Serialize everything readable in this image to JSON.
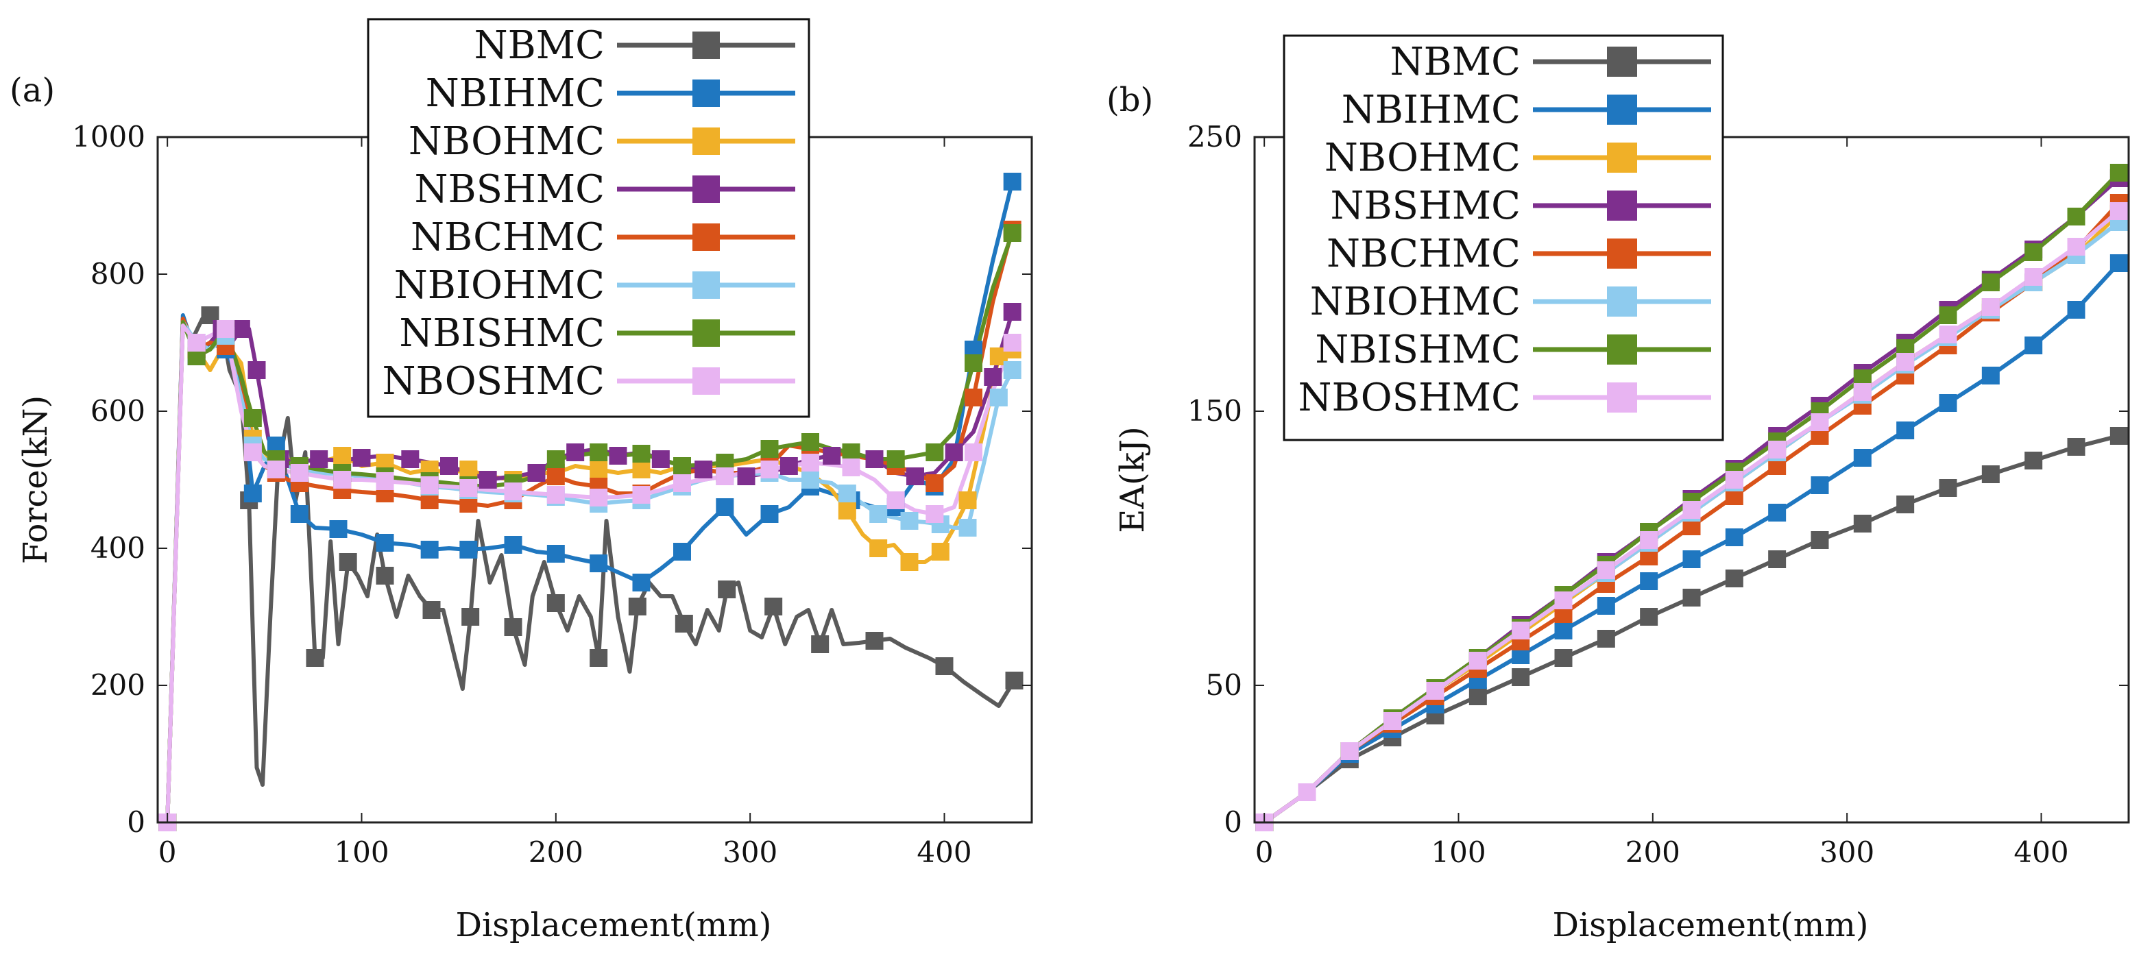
{
  "colors": {
    "NBMC": "#5a5a5a",
    "NBIHMC": "#1f77c0",
    "NBOHMC": "#f0b028",
    "NBSHMC": "#7e2f8e",
    "NBCHMC": "#d95319",
    "NBIOHMC": "#8ecbee",
    "NBISHMC": "#5f8f23",
    "NBOSHMC": "#e8b4f2"
  },
  "chart_data": [
    {
      "type": "line",
      "panel_label": "(a)",
      "xlabel": "Displacement(mm)",
      "ylabel": "Force(kN)",
      "xlim": [
        -5,
        445
      ],
      "ylim": [
        0,
        1000
      ],
      "xticks": [
        "0",
        "100",
        "200",
        "300",
        "400"
      ],
      "yticks": [
        "0",
        "200",
        "400",
        "600",
        "800",
        "1000"
      ],
      "legend_position": "top-center",
      "series": [
        {
          "name": "NBMC",
          "x": [
            0,
            8,
            12,
            18,
            22,
            28,
            32,
            38,
            42,
            46,
            49,
            53,
            57,
            62,
            66,
            71,
            76,
            80,
            84,
            88,
            93,
            98,
            103,
            108,
            112,
            118,
            124,
            130,
            136,
            142,
            148,
            152,
            156,
            160,
            166,
            172,
            178,
            184,
            188,
            194,
            200,
            206,
            212,
            218,
            222,
            226,
            232,
            238,
            242,
            248,
            254,
            260,
            266,
            272,
            278,
            284,
            288,
            294,
            300,
            306,
            312,
            318,
            324,
            330,
            336,
            342,
            348,
            356,
            364,
            372,
            380,
            392,
            400,
            410,
            420,
            428,
            436
          ],
          "y": [
            0,
            735,
            700,
            735,
            740,
            725,
            660,
            620,
            470,
            80,
            55,
            300,
            520,
            590,
            470,
            540,
            240,
            240,
            410,
            260,
            380,
            360,
            330,
            420,
            360,
            300,
            360,
            330,
            310,
            310,
            240,
            195,
            300,
            440,
            350,
            390,
            285,
            230,
            330,
            380,
            320,
            280,
            330,
            300,
            240,
            440,
            300,
            220,
            315,
            350,
            330,
            330,
            290,
            260,
            310,
            280,
            340,
            350,
            280,
            270,
            315,
            260,
            300,
            310,
            260,
            310,
            260,
            262,
            265,
            268,
            255,
            240,
            228,
            205,
            185,
            170,
            207
          ]
        },
        {
          "name": "NBIHMC",
          "x": [
            0,
            8,
            15,
            22,
            30,
            38,
            44,
            50,
            56,
            62,
            68,
            76,
            88,
            100,
            112,
            125,
            135,
            145,
            155,
            165,
            178,
            190,
            200,
            210,
            222,
            232,
            244,
            254,
            265,
            276,
            287,
            298,
            310,
            320,
            331,
            342,
            352,
            364,
            375,
            385,
            395,
            405,
            415,
            425,
            435
          ],
          "y": [
            0,
            740,
            680,
            700,
            690,
            640,
            480,
            520,
            550,
            500,
            450,
            430,
            428,
            420,
            408,
            405,
            398,
            400,
            398,
            400,
            405,
            395,
            392,
            385,
            378,
            365,
            350,
            370,
            395,
            430,
            460,
            420,
            450,
            460,
            490,
            480,
            470,
            460,
            460,
            500,
            490,
            530,
            690,
            820,
            935
          ]
        },
        {
          "name": "NBOHMC",
          "x": [
            0,
            8,
            15,
            22,
            30,
            38,
            44,
            50,
            56,
            62,
            68,
            78,
            90,
            100,
            112,
            125,
            135,
            145,
            155,
            165,
            178,
            190,
            200,
            210,
            222,
            232,
            244,
            254,
            265,
            276,
            287,
            298,
            310,
            320,
            331,
            342,
            350,
            358,
            366,
            374,
            382,
            390,
            398,
            405,
            412,
            420,
            428,
            435
          ],
          "y": [
            0,
            730,
            690,
            660,
            700,
            670,
            560,
            540,
            520,
            530,
            510,
            525,
            535,
            520,
            525,
            510,
            515,
            510,
            515,
            505,
            500,
            510,
            510,
            520,
            515,
            510,
            515,
            510,
            520,
            520,
            520,
            525,
            530,
            520,
            510,
            485,
            455,
            420,
            400,
            405,
            380,
            380,
            395,
            430,
            470,
            570,
            680,
            690
          ]
        },
        {
          "name": "NBSHMC",
          "x": [
            0,
            8,
            15,
            22,
            28,
            33,
            38,
            42,
            46,
            52,
            58,
            66,
            78,
            90,
            100,
            112,
            125,
            135,
            145,
            155,
            165,
            178,
            190,
            200,
            210,
            222,
            232,
            244,
            254,
            265,
            276,
            287,
            298,
            310,
            320,
            331,
            342,
            352,
            364,
            375,
            385,
            395,
            405,
            415,
            425,
            435
          ],
          "y": [
            0,
            730,
            690,
            700,
            720,
            700,
            720,
            720,
            660,
            560,
            530,
            525,
            530,
            528,
            532,
            535,
            530,
            525,
            520,
            510,
            500,
            505,
            510,
            530,
            540,
            545,
            535,
            540,
            530,
            520,
            515,
            510,
            505,
            510,
            520,
            530,
            535,
            540,
            530,
            510,
            505,
            510,
            540,
            570,
            650,
            745
          ]
        },
        {
          "name": "NBCHMC",
          "x": [
            0,
            8,
            15,
            22,
            30,
            38,
            44,
            50,
            56,
            62,
            68,
            78,
            90,
            100,
            112,
            125,
            135,
            145,
            155,
            165,
            178,
            190,
            200,
            210,
            222,
            232,
            244,
            254,
            265,
            276,
            287,
            298,
            310,
            320,
            331,
            342,
            352,
            364,
            375,
            385,
            395,
            405,
            415,
            425,
            435
          ],
          "y": [
            0,
            735,
            690,
            700,
            695,
            650,
            540,
            520,
            510,
            500,
            495,
            490,
            485,
            482,
            480,
            475,
            470,
            468,
            465,
            462,
            470,
            490,
            505,
            495,
            490,
            480,
            480,
            495,
            510,
            515,
            510,
            510,
            520,
            550,
            545,
            540,
            535,
            530,
            520,
            510,
            495,
            520,
            620,
            760,
            865
          ]
        },
        {
          "name": "NBIOHMC",
          "x": [
            0,
            8,
            15,
            22,
            30,
            38,
            44,
            50,
            56,
            62,
            68,
            78,
            90,
            100,
            112,
            125,
            135,
            145,
            155,
            165,
            178,
            190,
            200,
            210,
            222,
            232,
            244,
            254,
            265,
            276,
            287,
            298,
            310,
            320,
            331,
            342,
            350,
            358,
            366,
            374,
            382,
            390,
            398,
            405,
            412,
            420,
            428,
            435
          ],
          "y": [
            0,
            730,
            700,
            690,
            710,
            620,
            550,
            530,
            525,
            520,
            515,
            510,
            508,
            505,
            500,
            495,
            490,
            488,
            485,
            482,
            480,
            478,
            475,
            470,
            465,
            468,
            470,
            480,
            490,
            500,
            505,
            508,
            510,
            500,
            500,
            495,
            480,
            465,
            450,
            445,
            440,
            438,
            435,
            430,
            430,
            520,
            620,
            660
          ]
        },
        {
          "name": "NBISHMC",
          "x": [
            0,
            8,
            15,
            22,
            30,
            38,
            44,
            50,
            56,
            62,
            68,
            78,
            90,
            100,
            112,
            125,
            135,
            145,
            155,
            165,
            178,
            190,
            200,
            210,
            222,
            232,
            244,
            254,
            265,
            276,
            287,
            298,
            310,
            320,
            331,
            342,
            352,
            364,
            375,
            385,
            395,
            405,
            415,
            425,
            435
          ],
          "y": [
            0,
            730,
            680,
            690,
            720,
            650,
            590,
            540,
            530,
            525,
            520,
            515,
            510,
            508,
            505,
            500,
            498,
            495,
            492,
            490,
            495,
            505,
            530,
            535,
            540,
            535,
            538,
            530,
            520,
            522,
            525,
            530,
            545,
            550,
            555,
            545,
            540,
            530,
            530,
            535,
            540,
            570,
            670,
            780,
            860
          ]
        },
        {
          "name": "NBOSHMC",
          "x": [
            0,
            8,
            15,
            22,
            30,
            38,
            44,
            50,
            56,
            62,
            68,
            78,
            90,
            100,
            112,
            125,
            135,
            145,
            155,
            165,
            178,
            190,
            200,
            210,
            222,
            232,
            244,
            254,
            265,
            276,
            287,
            298,
            310,
            320,
            331,
            342,
            352,
            364,
            375,
            385,
            395,
            405,
            415,
            425,
            435
          ],
          "y": [
            0,
            725,
            700,
            710,
            720,
            600,
            540,
            520,
            515,
            512,
            510,
            505,
            500,
            500,
            498,
            495,
            492,
            490,
            488,
            485,
            483,
            480,
            478,
            476,
            474,
            475,
            478,
            485,
            495,
            500,
            505,
            510,
            515,
            520,
            525,
            522,
            518,
            500,
            470,
            455,
            450,
            460,
            540,
            630,
            700
          ]
        }
      ]
    },
    {
      "type": "line",
      "panel_label": "(b)",
      "xlabel": "Displacement(mm)",
      "ylabel": "EA(kJ)",
      "xlim": [
        -5,
        445
      ],
      "ylim": [
        0,
        250
      ],
      "xticks": [
        "0",
        "100",
        "200",
        "300",
        "400"
      ],
      "yticks": [
        "0",
        "50",
        "150",
        "250"
      ],
      "ytick_values": [
        0,
        50,
        150,
        250
      ],
      "legend_position": "top-left",
      "x": [
        0,
        22,
        44,
        66,
        88,
        110,
        132,
        154,
        176,
        198,
        220,
        242,
        264,
        286,
        308,
        330,
        352,
        374,
        396,
        418,
        440
      ],
      "series": [
        {
          "name": "NBMC",
          "values": [
            0,
            11,
            23,
            31,
            39,
            46,
            53,
            60,
            67,
            75,
            82,
            89,
            96,
            103,
            109,
            116,
            122,
            127,
            132,
            137,
            141
          ]
        },
        {
          "name": "NBIHMC",
          "values": [
            0,
            11,
            25,
            34,
            43,
            52,
            61,
            70,
            79,
            88,
            96,
            104,
            113,
            123,
            133,
            143,
            153,
            163,
            174,
            187,
            204
          ]
        },
        {
          "name": "NBOHMC",
          "values": [
            0,
            11,
            26,
            37,
            48,
            58,
            69,
            80,
            91,
            102,
            113,
            124,
            135,
            146,
            157,
            168,
            178,
            188,
            197,
            207,
            222
          ]
        },
        {
          "name": "NBSHMC",
          "values": [
            0,
            11,
            26,
            38,
            49,
            60,
            72,
            83,
            95,
            106,
            118,
            129,
            141,
            152,
            164,
            175,
            187,
            198,
            209,
            221,
            235
          ]
        },
        {
          "name": "NBCHMC",
          "values": [
            0,
            11,
            26,
            36,
            46,
            56,
            66,
            76,
            87,
            97,
            108,
            119,
            130,
            141,
            152,
            163,
            174,
            186,
            197,
            209,
            226
          ]
        },
        {
          "name": "NBIOHMC",
          "values": [
            0,
            11,
            26,
            37,
            48,
            59,
            70,
            81,
            91,
            102,
            113,
            124,
            135,
            146,
            156,
            167,
            177,
            187,
            197,
            207,
            219
          ]
        },
        {
          "name": "NBISHMC",
          "values": [
            0,
            11,
            26,
            38,
            49,
            60,
            71,
            83,
            94,
            106,
            117,
            128,
            139,
            150,
            162,
            173,
            185,
            197,
            208,
            221,
            237
          ]
        },
        {
          "name": "NBOSHMC",
          "values": [
            0,
            11,
            26,
            37,
            48,
            59,
            70,
            81,
            92,
            103,
            114,
            125,
            136,
            146,
            157,
            168,
            178,
            188,
            199,
            210,
            223
          ]
        }
      ]
    }
  ]
}
